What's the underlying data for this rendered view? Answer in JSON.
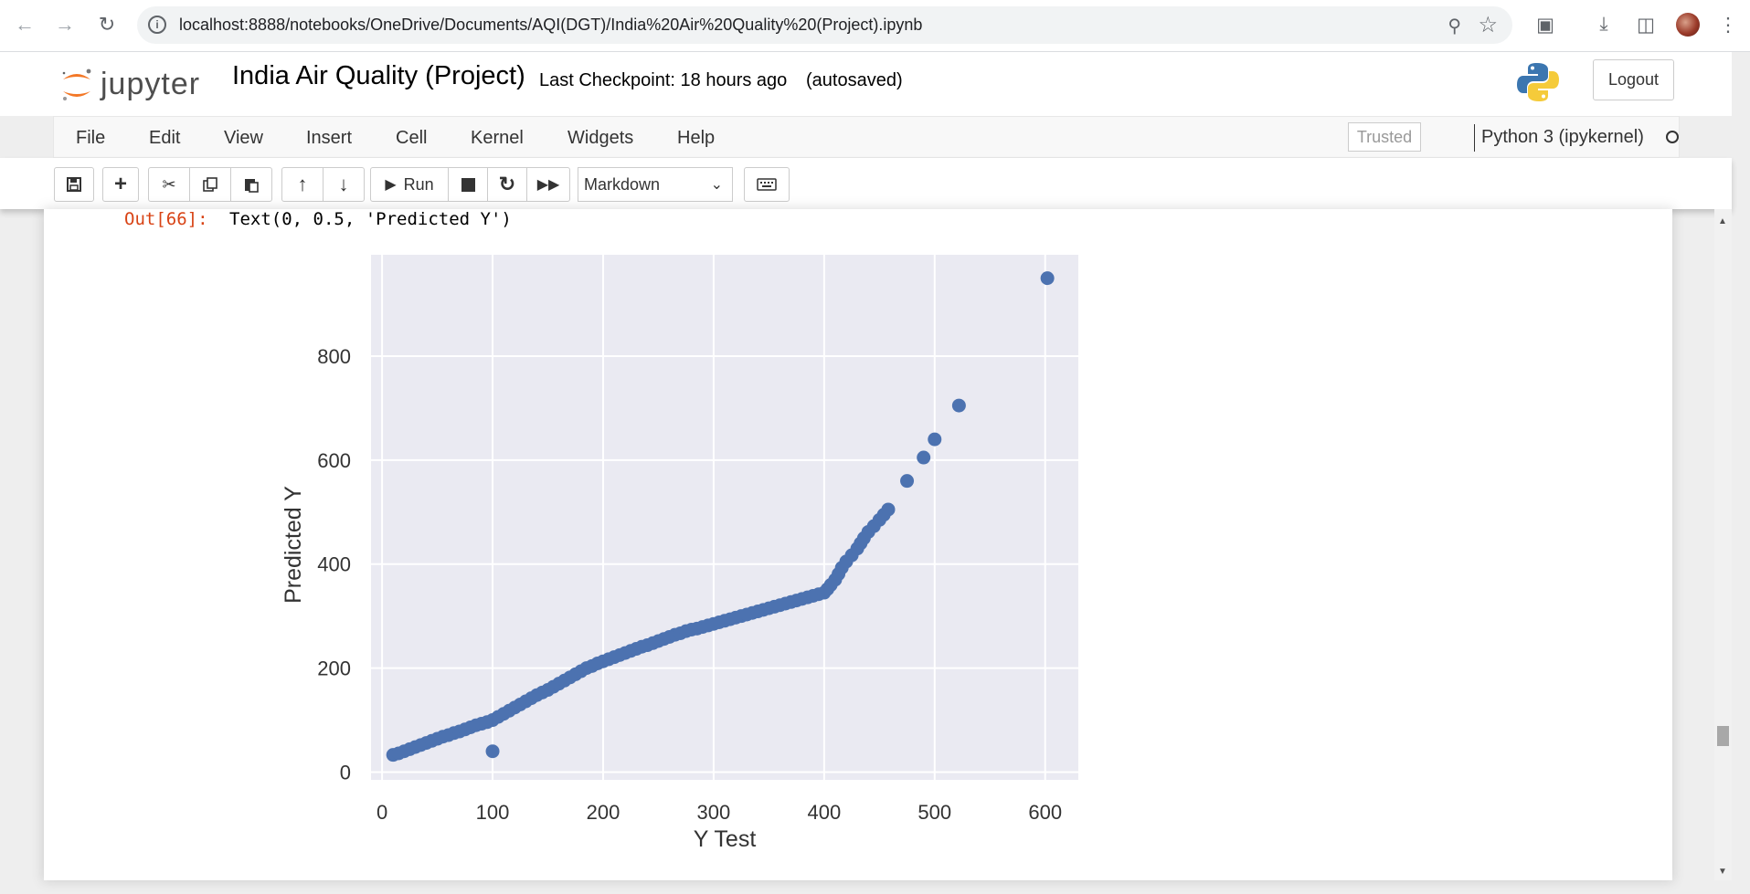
{
  "browser": {
    "url": "localhost:8888/notebooks/OneDrive/Documents/AQI(DGT)/India%20Air%20Quality%20(Project).ipynb"
  },
  "header": {
    "logo_text": "jupyter",
    "notebook_title": "India Air Quality (Project)",
    "checkpoint": "Last Checkpoint: 18 hours ago",
    "autosaved": "(autosaved)",
    "logout_label": "Logout"
  },
  "menu": {
    "items": [
      "File",
      "Edit",
      "View",
      "Insert",
      "Cell",
      "Kernel",
      "Widgets",
      "Help"
    ],
    "trusted": "Trusted",
    "kernel": "Python 3 (ipykernel)"
  },
  "toolbar": {
    "run_label": "Run",
    "cell_type": "Markdown",
    "icons": [
      "save-icon",
      "add-icon",
      "cut-icon",
      "copy-icon",
      "paste-icon",
      "move-up-icon",
      "move-down-icon",
      "run-icon",
      "stop-icon",
      "restart-icon",
      "fast-forward-icon",
      "keyboard-icon"
    ]
  },
  "cell": {
    "out_prompt": "Out[66]:",
    "out_text": "Text(0, 0.5, 'Predicted Y')"
  },
  "chart_data": {
    "type": "scatter",
    "xlabel": "Y Test",
    "ylabel": "Predicted Y",
    "xlim": [
      -10,
      630
    ],
    "ylim": [
      -15,
      995
    ],
    "xticks": [
      0,
      100,
      200,
      300,
      400,
      500,
      600
    ],
    "yticks": [
      0,
      200,
      400,
      600,
      800
    ],
    "grid": true,
    "color": "#4c72b0",
    "background": "#eaeaf2",
    "series": [
      {
        "x": [
          10,
          15,
          20,
          25,
          30,
          35,
          40,
          45,
          50,
          55,
          60,
          65,
          70,
          75,
          80,
          85,
          90,
          95,
          100,
          105,
          110,
          115,
          120,
          125,
          130,
          135,
          140,
          145,
          150,
          155,
          160,
          165,
          170,
          175,
          180,
          185,
          190,
          195,
          200,
          205,
          210,
          215,
          220,
          225,
          230,
          235,
          240,
          245,
          250,
          255,
          260,
          265,
          270,
          275,
          280,
          285,
          290,
          295,
          300,
          305,
          310,
          315,
          320,
          325,
          330,
          335,
          340,
          345,
          350,
          355,
          360,
          365,
          370,
          375,
          380,
          385,
          390,
          395,
          400,
          403,
          406,
          410,
          413,
          416,
          420,
          425,
          430,
          433,
          436,
          440,
          445,
          450,
          454,
          458,
          475,
          490,
          500,
          522,
          602,
          100
        ],
        "y": [
          33,
          36,
          40,
          44,
          48,
          52,
          56,
          60,
          64,
          68,
          71,
          75,
          78,
          82,
          86,
          90,
          93,
          96,
          100,
          106,
          112,
          118,
          124,
          130,
          136,
          142,
          148,
          153,
          158,
          164,
          170,
          176,
          182,
          188,
          194,
          200,
          204,
          209,
          213,
          217,
          221,
          225,
          229,
          233,
          237,
          241,
          244,
          248,
          252,
          256,
          260,
          264,
          267,
          271,
          274,
          276,
          279,
          282,
          285,
          288,
          291,
          294,
          297,
          300,
          303,
          306,
          309,
          312,
          315,
          318,
          321,
          324,
          327,
          330,
          333,
          336,
          339,
          342,
          345,
          352,
          360,
          370,
          381,
          393,
          405,
          417,
          430,
          440,
          450,
          462,
          473,
          485,
          495,
          505,
          560,
          605,
          640,
          705,
          950,
          40
        ]
      }
    ]
  }
}
